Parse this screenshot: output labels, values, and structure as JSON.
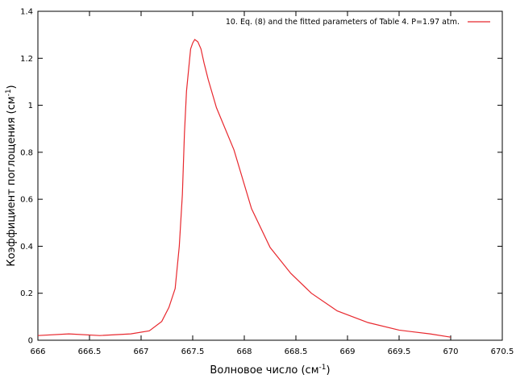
{
  "chart_data": {
    "type": "line",
    "xlabel": "Волновое число (см",
    "xlabel_sup": "-1",
    "xlabel_end": ")",
    "ylabel": "Коэффициент поглощения (см",
    "ylabel_sup": "-1",
    "ylabel_end": ")",
    "xlim": [
      666,
      670.5
    ],
    "ylim": [
      0,
      1.4
    ],
    "xticks": [
      666,
      666.5,
      667,
      667.5,
      668,
      668.5,
      669,
      669.5,
      670,
      670.5
    ],
    "xtick_labels": [
      "666",
      "666.5",
      "667",
      "667.5",
      "668",
      "668.5",
      "669",
      "669.5",
      "670",
      "670.5"
    ],
    "yticks": [
      0,
      0.2,
      0.4,
      0.6,
      0.8,
      1,
      1.2,
      1.4
    ],
    "ytick_labels": [
      "0",
      "0.2",
      "0.4",
      "0.6",
      "0.8",
      "1",
      "1.2",
      "1.4"
    ],
    "grid": false,
    "legend_position": "top-right",
    "colors": {
      "series": "#e8282e",
      "axis": "#000000"
    },
    "series": [
      {
        "name": "10. Eq. (8) and the fitted parameters of Table 4. P=1.97 atm.",
        "x": [
          666.0,
          666.3,
          666.6,
          666.9,
          667.08,
          667.2,
          667.27,
          667.33,
          667.37,
          667.4,
          667.42,
          667.44,
          667.46,
          667.48,
          667.5,
          667.52,
          667.55,
          667.58,
          667.61,
          667.65,
          667.73,
          667.9,
          668.07,
          668.25,
          668.45,
          668.65,
          668.9,
          669.2,
          669.5,
          669.8,
          670.0
        ],
        "y": [
          0.02,
          0.027,
          0.02,
          0.027,
          0.04,
          0.08,
          0.14,
          0.22,
          0.4,
          0.62,
          0.88,
          1.06,
          1.15,
          1.24,
          1.265,
          1.28,
          1.27,
          1.24,
          1.18,
          1.11,
          0.99,
          0.81,
          0.56,
          0.395,
          0.285,
          0.2,
          0.125,
          0.075,
          0.043,
          0.027,
          0.013
        ]
      }
    ]
  }
}
